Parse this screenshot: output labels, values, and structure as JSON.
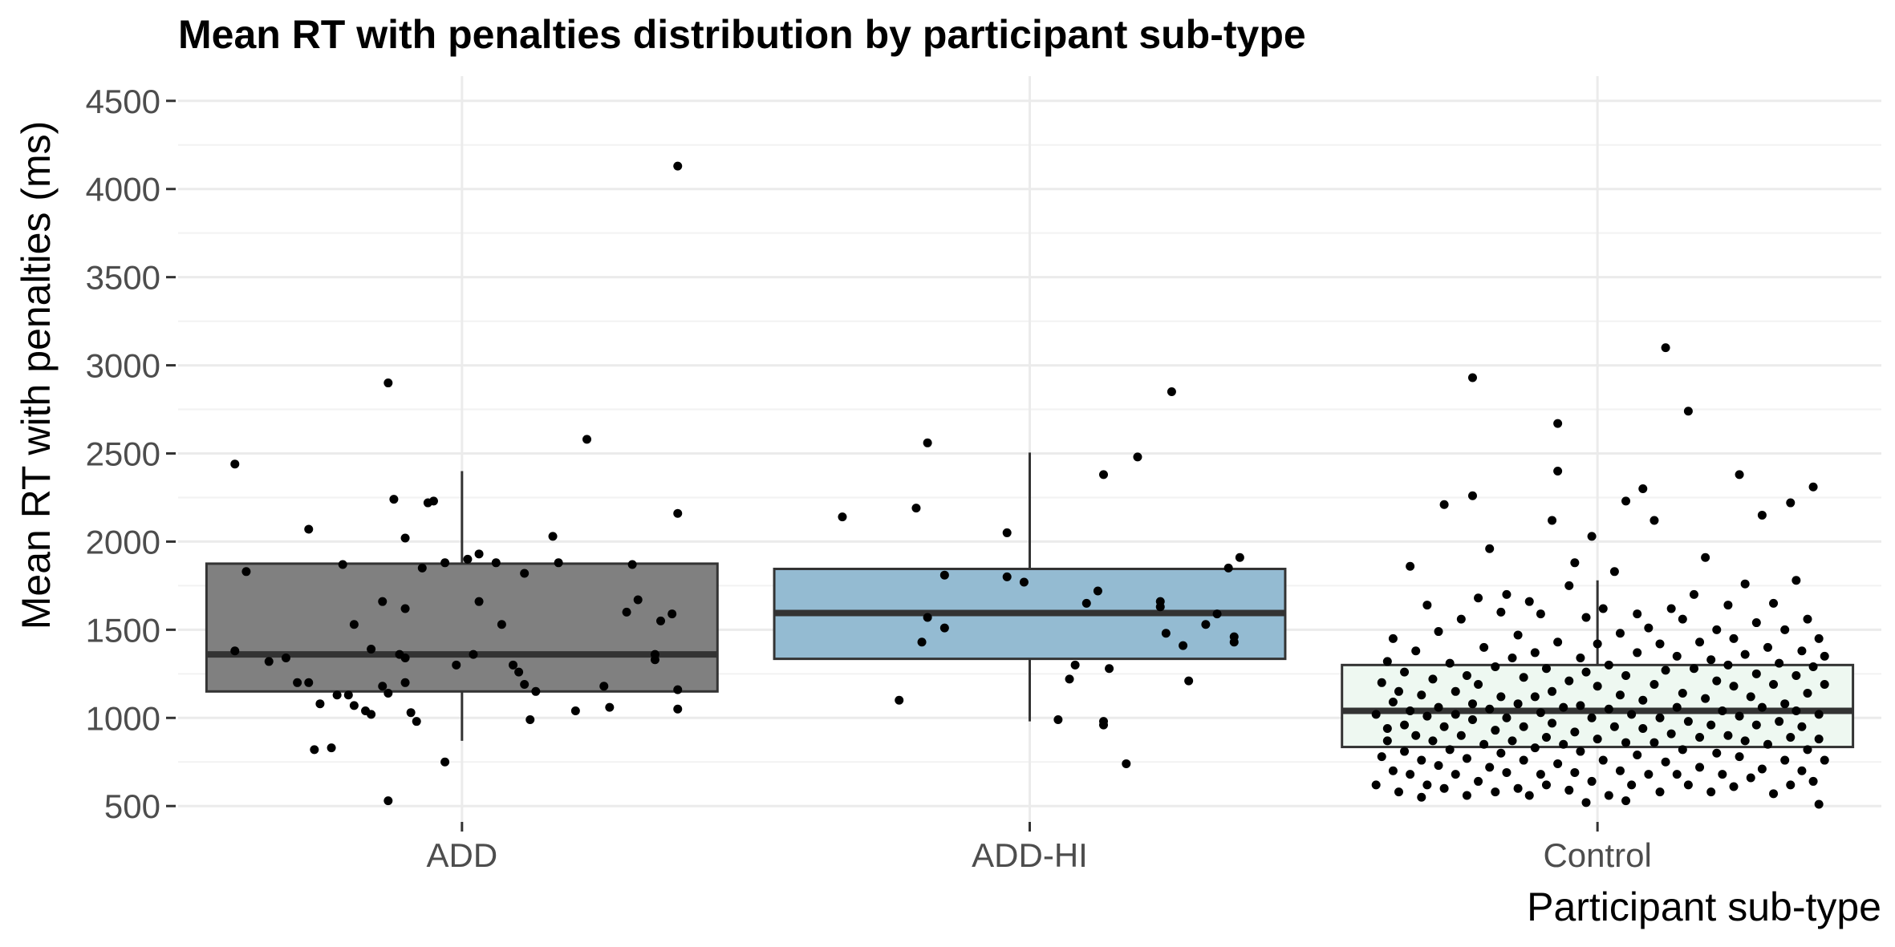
{
  "chart_data": {
    "type": "box",
    "title": "Mean RT with penalties distribution by participant sub-type",
    "xlabel": "Participant sub-type",
    "ylabel": "Mean RT with penalties (ms)",
    "categories": [
      "ADD",
      "ADD-HI",
      "Control"
    ],
    "ylim": [
      410,
      4640
    ],
    "yticks": [
      500,
      1000,
      1500,
      2000,
      2500,
      3000,
      3500,
      4000,
      4500
    ],
    "grid": true,
    "legend": "none",
    "boxes": [
      {
        "category": "ADD",
        "whisker_low": 870,
        "q1": 1150,
        "median": 1360,
        "q3": 1875,
        "whisker_high": 2400,
        "fill": "#808080"
      },
      {
        "category": "ADD-HI",
        "whisker_low": 980,
        "q1": 1335,
        "median": 1595,
        "q3": 1845,
        "whisker_high": 2505,
        "fill": "#94bbd2"
      },
      {
        "category": "Control",
        "whisker_low": 830,
        "q1": 835,
        "median": 1040,
        "q3": 1300,
        "whisker_high": 1780,
        "fill": "#eef8f1"
      }
    ],
    "points": {
      "ADD": [
        [
          -0.4,
          2440
        ],
        [
          -0.4,
          1380
        ],
        [
          -0.38,
          1830
        ],
        [
          -0.34,
          1320
        ],
        [
          -0.31,
          1340
        ],
        [
          -0.29,
          1200
        ],
        [
          -0.27,
          2070
        ],
        [
          -0.27,
          1200
        ],
        [
          -0.26,
          820
        ],
        [
          -0.25,
          1080
        ],
        [
          -0.23,
          830
        ],
        [
          -0.22,
          1130
        ],
        [
          -0.21,
          1870
        ],
        [
          -0.2,
          1130
        ],
        [
          -0.19,
          1070
        ],
        [
          -0.19,
          1530
        ],
        [
          -0.17,
          1040
        ],
        [
          -0.16,
          1390
        ],
        [
          -0.16,
          1020
        ],
        [
          -0.14,
          1660
        ],
        [
          -0.14,
          1180
        ],
        [
          -0.13,
          1140
        ],
        [
          -0.13,
          2900
        ],
        [
          -0.13,
          530
        ],
        [
          -0.12,
          2240
        ],
        [
          -0.11,
          1360
        ],
        [
          -0.1,
          2020
        ],
        [
          -0.1,
          1620
        ],
        [
          -0.1,
          1340
        ],
        [
          -0.1,
          1200
        ],
        [
          -0.09,
          1030
        ],
        [
          -0.08,
          980
        ],
        [
          -0.07,
          1850
        ],
        [
          -0.06,
          2220
        ],
        [
          -0.05,
          2230
        ],
        [
          -0.03,
          750
        ],
        [
          -0.03,
          1880
        ],
        [
          -0.01,
          1300
        ],
        [
          0.01,
          1900
        ],
        [
          0.02,
          1360
        ],
        [
          0.03,
          1930
        ],
        [
          0.03,
          1660
        ],
        [
          0.06,
          1880
        ],
        [
          0.07,
          1530
        ],
        [
          0.09,
          1300
        ],
        [
          0.1,
          1260
        ],
        [
          0.11,
          1190
        ],
        [
          0.11,
          1820
        ],
        [
          0.12,
          990
        ],
        [
          0.13,
          1150
        ],
        [
          0.16,
          2030
        ],
        [
          0.17,
          1880
        ],
        [
          0.2,
          1040
        ],
        [
          0.22,
          2580
        ],
        [
          0.25,
          1180
        ],
        [
          0.26,
          1060
        ],
        [
          0.29,
          1600
        ],
        [
          0.3,
          1870
        ],
        [
          0.31,
          1670
        ],
        [
          0.34,
          1360
        ],
        [
          0.34,
          1330
        ],
        [
          0.35,
          1550
        ],
        [
          0.37,
          1590
        ],
        [
          0.38,
          1050
        ],
        [
          0.38,
          1160
        ],
        [
          0.38,
          2160
        ],
        [
          0.38,
          4130
        ]
      ],
      "ADD-HI": [
        [
          -0.33,
          2140
        ],
        [
          -0.23,
          1100
        ],
        [
          -0.2,
          2190
        ],
        [
          -0.19,
          1430
        ],
        [
          -0.18,
          2560
        ],
        [
          -0.18,
          1570
        ],
        [
          -0.15,
          1810
        ],
        [
          -0.15,
          1510
        ],
        [
          -0.04,
          2050
        ],
        [
          -0.04,
          1800
        ],
        [
          -0.01,
          1770
        ],
        [
          0.05,
          990
        ],
        [
          0.07,
          1220
        ],
        [
          0.08,
          1300
        ],
        [
          0.1,
          1650
        ],
        [
          0.12,
          1720
        ],
        [
          0.13,
          2380
        ],
        [
          0.13,
          960
        ],
        [
          0.13,
          980
        ],
        [
          0.14,
          1280
        ],
        [
          0.17,
          740
        ],
        [
          0.19,
          2480
        ],
        [
          0.23,
          1630
        ],
        [
          0.23,
          1660
        ],
        [
          0.24,
          1480
        ],
        [
          0.25,
          2850
        ],
        [
          0.27,
          1410
        ],
        [
          0.28,
          1210
        ],
        [
          0.31,
          1530
        ],
        [
          0.33,
          1590
        ],
        [
          0.35,
          1850
        ],
        [
          0.36,
          1460
        ],
        [
          0.36,
          1430
        ],
        [
          0.37,
          1910
        ]
      ],
      "Control": [
        [
          -0.39,
          1020
        ],
        [
          -0.39,
          620
        ],
        [
          -0.38,
          780
        ],
        [
          -0.38,
          1200
        ],
        [
          -0.37,
          870
        ],
        [
          -0.37,
          1320
        ],
        [
          -0.37,
          940
        ],
        [
          -0.36,
          1090
        ],
        [
          -0.36,
          700
        ],
        [
          -0.36,
          1450
        ],
        [
          -0.35,
          580
        ],
        [
          -0.35,
          1150
        ],
        [
          -0.34,
          960
        ],
        [
          -0.34,
          810
        ],
        [
          -0.34,
          1260
        ],
        [
          -0.33,
          1860
        ],
        [
          -0.33,
          680
        ],
        [
          -0.33,
          1040
        ],
        [
          -0.32,
          900
        ],
        [
          -0.32,
          1380
        ],
        [
          -0.31,
          550
        ],
        [
          -0.31,
          1130
        ],
        [
          -0.31,
          760
        ],
        [
          -0.3,
          1010
        ],
        [
          -0.3,
          1640
        ],
        [
          -0.3,
          620
        ],
        [
          -0.29,
          1220
        ],
        [
          -0.29,
          870
        ],
        [
          -0.28,
          1490
        ],
        [
          -0.28,
          730
        ],
        [
          -0.28,
          1060
        ],
        [
          -0.27,
          2210
        ],
        [
          -0.27,
          950
        ],
        [
          -0.27,
          600
        ],
        [
          -0.26,
          1310
        ],
        [
          -0.26,
          820
        ],
        [
          -0.25,
          1150
        ],
        [
          -0.25,
          680
        ],
        [
          -0.25,
          1020
        ],
        [
          -0.24,
          1560
        ],
        [
          -0.24,
          900
        ],
        [
          -0.23,
          1240
        ],
        [
          -0.23,
          560
        ],
        [
          -0.23,
          770
        ],
        [
          -0.22,
          2260
        ],
        [
          -0.22,
          1080
        ],
        [
          -0.22,
          990
        ],
        [
          -0.21,
          1680
        ],
        [
          -0.21,
          640
        ],
        [
          -0.21,
          1190
        ],
        [
          -0.2,
          850
        ],
        [
          -0.2,
          1400
        ],
        [
          -0.19,
          720
        ],
        [
          -0.19,
          1960
        ],
        [
          -0.19,
          1050
        ],
        [
          -0.18,
          580
        ],
        [
          -0.18,
          1290
        ],
        [
          -0.18,
          930
        ],
        [
          -0.17,
          1600
        ],
        [
          -0.17,
          800
        ],
        [
          -0.17,
          1120
        ],
        [
          -0.16,
          690
        ],
        [
          -0.16,
          1700
        ],
        [
          -0.16,
          1000
        ],
        [
          -0.15,
          870
        ],
        [
          -0.15,
          1340
        ],
        [
          -0.14,
          600
        ],
        [
          -0.14,
          1470
        ],
        [
          -0.14,
          1080
        ],
        [
          -0.13,
          760
        ],
        [
          -0.13,
          1230
        ],
        [
          -0.13,
          950
        ],
        [
          -0.12,
          1660
        ],
        [
          -0.12,
          560
        ],
        [
          -0.11,
          1120
        ],
        [
          -0.11,
          830
        ],
        [
          -0.11,
          1370
        ],
        [
          -0.1,
          680
        ],
        [
          -0.1,
          1030
        ],
        [
          -0.1,
          1590
        ],
        [
          -0.09,
          890
        ],
        [
          -0.09,
          1280
        ],
        [
          -0.09,
          620
        ],
        [
          -0.08,
          2120
        ],
        [
          -0.08,
          1150
        ],
        [
          -0.08,
          970
        ],
        [
          -0.07,
          2400
        ],
        [
          -0.07,
          740
        ],
        [
          -0.07,
          1430
        ],
        [
          -0.06,
          1060
        ],
        [
          -0.06,
          850
        ],
        [
          -0.05,
          1750
        ],
        [
          -0.05,
          590
        ],
        [
          -0.05,
          1210
        ],
        [
          -0.04,
          1880
        ],
        [
          -0.04,
          920
        ],
        [
          -0.04,
          690
        ],
        [
          -0.03,
          1340
        ],
        [
          -0.03,
          1070
        ],
        [
          -0.03,
          810
        ],
        [
          -0.02,
          1570
        ],
        [
          -0.02,
          1260
        ],
        [
          -0.01,
          2030
        ],
        [
          -0.01,
          640
        ],
        [
          -0.01,
          1000
        ],
        [
          0.0,
          1420
        ],
        [
          0.0,
          880
        ],
        [
          0.0,
          1180
        ],
        [
          0.01,
          760
        ],
        [
          0.01,
          1620
        ],
        [
          0.02,
          1050
        ],
        [
          0.02,
          560
        ],
        [
          0.02,
          1300
        ],
        [
          0.03,
          950
        ],
        [
          0.03,
          1830
        ],
        [
          0.04,
          700
        ],
        [
          0.04,
          1130
        ],
        [
          0.04,
          1480
        ],
        [
          0.05,
          2230
        ],
        [
          0.05,
          860
        ],
        [
          0.05,
          1240
        ],
        [
          0.06,
          620
        ],
        [
          0.06,
          1020
        ],
        [
          0.07,
          1590
        ],
        [
          0.07,
          790
        ],
        [
          0.07,
          1370
        ],
        [
          0.08,
          2300
        ],
        [
          0.08,
          940
        ],
        [
          0.08,
          1100
        ],
        [
          0.09,
          680
        ],
        [
          0.09,
          1510
        ],
        [
          0.1,
          1190
        ],
        [
          0.1,
          860
        ],
        [
          0.1,
          2120
        ],
        [
          0.11,
          1000
        ],
        [
          0.11,
          580
        ],
        [
          0.11,
          1420
        ],
        [
          0.12,
          3100
        ],
        [
          0.12,
          750
        ],
        [
          0.12,
          1270
        ],
        [
          0.13,
          1620
        ],
        [
          0.13,
          910
        ],
        [
          0.14,
          1060
        ],
        [
          0.14,
          680
        ],
        [
          0.14,
          1350
        ],
        [
          0.15,
          1140
        ],
        [
          0.15,
          820
        ],
        [
          0.15,
          1560
        ],
        [
          0.16,
          2740
        ],
        [
          0.16,
          620
        ],
        [
          0.16,
          980
        ],
        [
          0.17,
          1280
        ],
        [
          0.17,
          1700
        ],
        [
          0.18,
          890
        ],
        [
          0.18,
          1430
        ],
        [
          0.18,
          720
        ],
        [
          0.19,
          1110
        ],
        [
          0.19,
          1910
        ],
        [
          0.2,
          960
        ],
        [
          0.2,
          580
        ],
        [
          0.2,
          1330
        ],
        [
          0.21,
          1500
        ],
        [
          0.21,
          800
        ],
        [
          0.21,
          1210
        ],
        [
          0.22,
          1040
        ],
        [
          0.22,
          680
        ],
        [
          0.23,
          1640
        ],
        [
          0.23,
          1300
        ],
        [
          0.23,
          900
        ],
        [
          0.24,
          1450
        ],
        [
          0.24,
          610
        ],
        [
          0.24,
          1180
        ],
        [
          0.25,
          2380
        ],
        [
          0.25,
          1010
        ],
        [
          0.25,
          780
        ],
        [
          0.26,
          1360
        ],
        [
          0.26,
          1760
        ],
        [
          0.26,
          870
        ],
        [
          0.27,
          1120
        ],
        [
          0.27,
          660
        ],
        [
          0.28,
          1540
        ],
        [
          0.28,
          960
        ],
        [
          0.28,
          1250
        ],
        [
          0.29,
          710
        ],
        [
          0.29,
          1060
        ],
        [
          0.29,
          2150
        ],
        [
          0.3,
          1400
        ],
        [
          0.3,
          850
        ],
        [
          0.31,
          1190
        ],
        [
          0.31,
          570
        ],
        [
          0.31,
          1650
        ],
        [
          0.32,
          980
        ],
        [
          0.32,
          1310
        ],
        [
          0.33,
          760
        ],
        [
          0.33,
          1080
        ],
        [
          0.33,
          1500
        ],
        [
          0.34,
          2220
        ],
        [
          0.34,
          890
        ],
        [
          0.34,
          620
        ],
        [
          0.35,
          1240
        ],
        [
          0.35,
          1040
        ],
        [
          0.35,
          1780
        ],
        [
          0.36,
          700
        ],
        [
          0.36,
          1380
        ],
        [
          0.36,
          950
        ],
        [
          0.37,
          1560
        ],
        [
          0.37,
          820
        ],
        [
          0.37,
          1140
        ],
        [
          0.38,
          2310
        ],
        [
          0.38,
          640
        ],
        [
          0.38,
          1290
        ],
        [
          0.39,
          1020
        ],
        [
          0.39,
          510
        ],
        [
          0.39,
          1450
        ],
        [
          0.39,
          880
        ],
        [
          0.4,
          1190
        ],
        [
          0.4,
          760
        ],
        [
          0.4,
          1350
        ],
        [
          -0.02,
          520
        ],
        [
          0.05,
          530
        ],
        [
          -0.22,
          2930
        ],
        [
          -0.07,
          2670
        ]
      ]
    }
  }
}
